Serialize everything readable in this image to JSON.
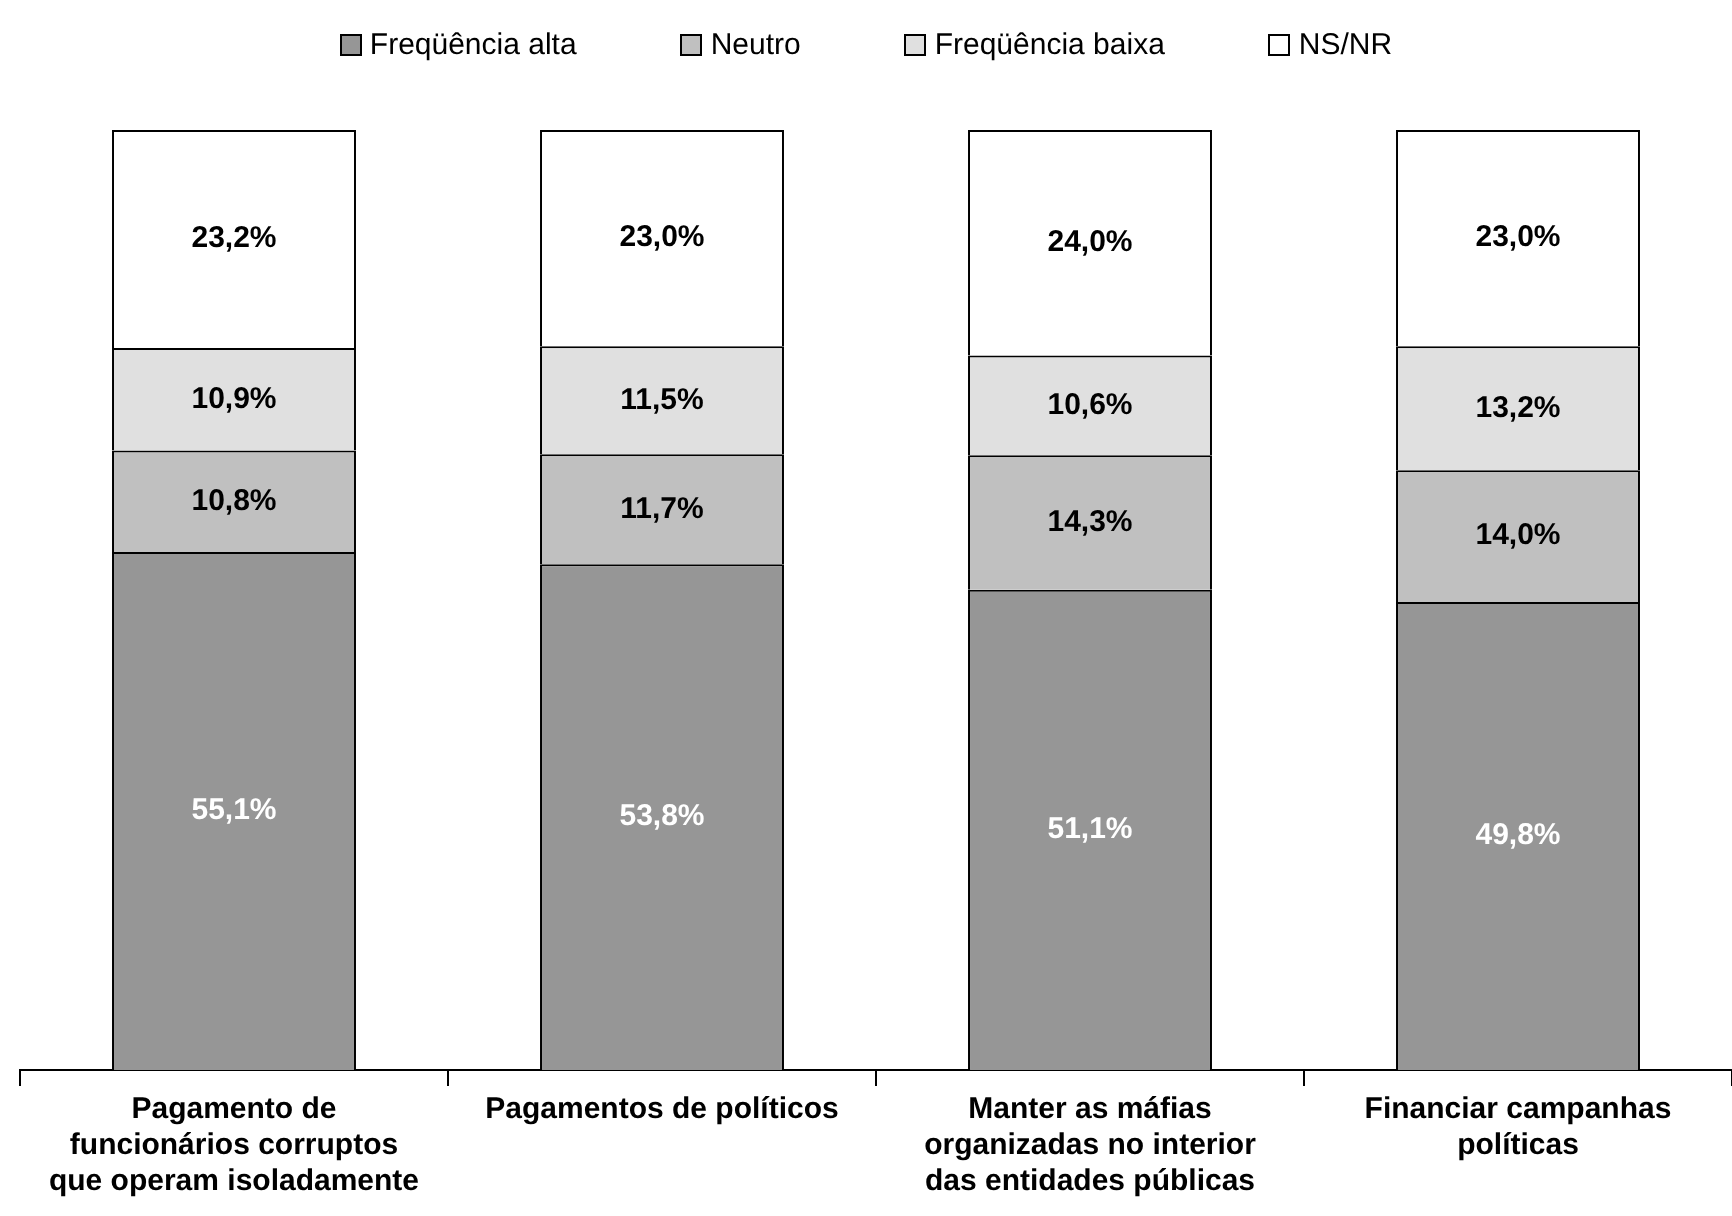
{
  "chart_data": {
    "type": "bar",
    "stacked": true,
    "categories": [
      "Pagamento de funcionários corruptos que operam isoladamente",
      "Pagamentos de políticos",
      "Manter as máfias organizadas no interior das entidades públicas",
      "Financiar campanhas políticas"
    ],
    "series": [
      {
        "name": "Freqüência alta",
        "color": "#969696",
        "values": [
          55.1,
          53.8,
          51.1,
          49.8
        ],
        "value_labels": [
          "55,1%",
          "53,8%",
          "51,1%",
          "49,8%"
        ]
      },
      {
        "name": "Neutro",
        "color": "#c0c0c0",
        "values": [
          10.8,
          11.7,
          14.3,
          14.0
        ],
        "value_labels": [
          "10,8%",
          "11,7%",
          "14,3%",
          "14,0%"
        ]
      },
      {
        "name": "Freqüência baixa",
        "color": "#e0e0e0",
        "values": [
          10.9,
          11.5,
          10.6,
          13.2
        ],
        "value_labels": [
          "10,9%",
          "11,5%",
          "10,6%",
          "13,2%"
        ]
      },
      {
        "name": "NS/NR",
        "color": "#ffffff",
        "values": [
          23.2,
          23.0,
          24.0,
          23.0
        ],
        "value_labels": [
          "23,2%",
          "23,0%",
          "24,0%",
          "23,0%"
        ]
      }
    ],
    "ylim": [
      0,
      100
    ],
    "legend": "top",
    "grid": false,
    "tick_labels": "x"
  }
}
